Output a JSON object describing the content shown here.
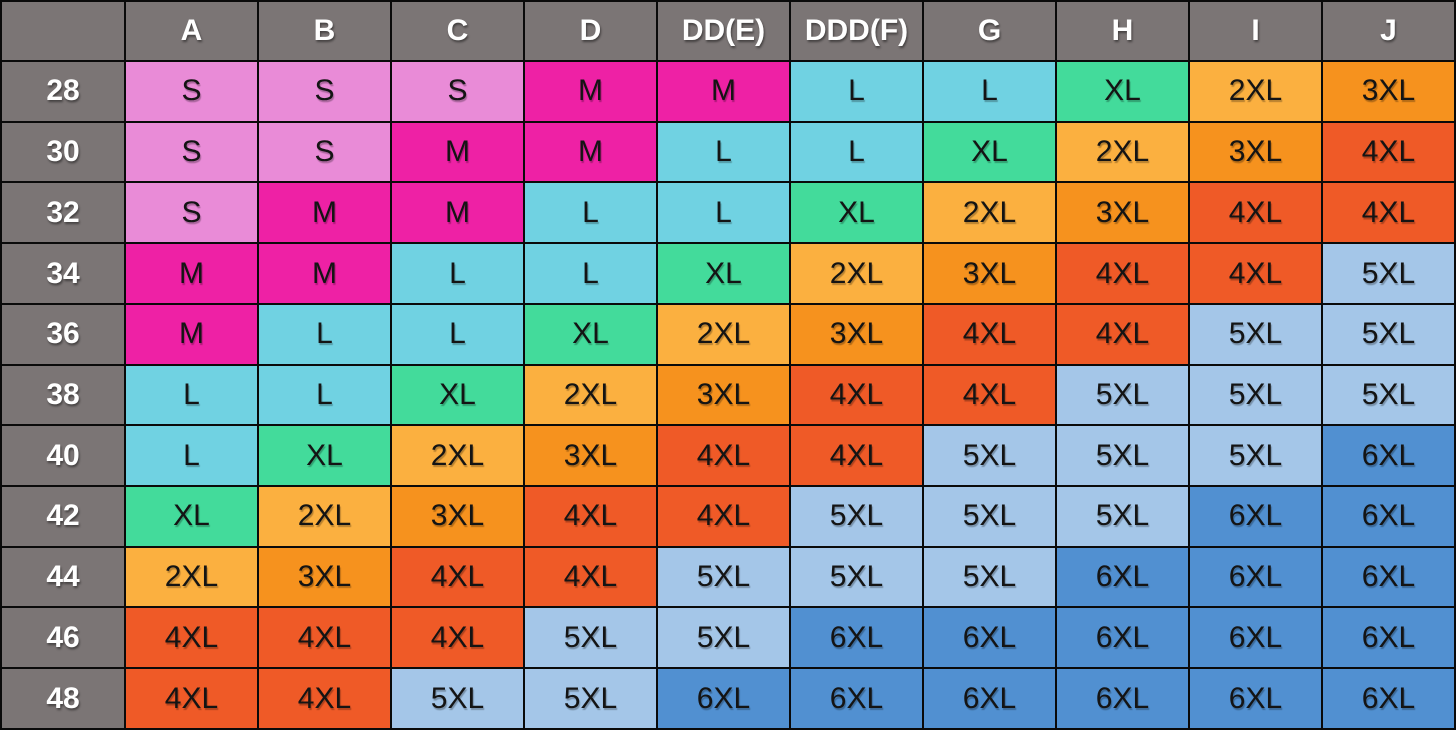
{
  "colors": {
    "header_bg": "#7B7575",
    "header_text": "#FFFFFF",
    "cell_text": "#141414",
    "grid_line": "#0A0A0A"
  },
  "chart_data": {
    "type": "table",
    "title": "",
    "corner_label": "",
    "columns": [
      "A",
      "B",
      "C",
      "D",
      "DD(E)",
      "DDD(F)",
      "G",
      "H",
      "I",
      "J"
    ],
    "row_labels": [
      "28",
      "30",
      "32",
      "34",
      "36",
      "38",
      "40",
      "42",
      "44",
      "46",
      "48"
    ],
    "matrix": [
      [
        "S",
        "S",
        "S",
        "M",
        "M",
        "L",
        "L",
        "XL",
        "2XL",
        "3XL"
      ],
      [
        "S",
        "S",
        "M",
        "M",
        "L",
        "L",
        "XL",
        "2XL",
        "3XL",
        "4XL"
      ],
      [
        "S",
        "M",
        "M",
        "L",
        "L",
        "XL",
        "2XL",
        "3XL",
        "4XL",
        "4XL"
      ],
      [
        "M",
        "M",
        "L",
        "L",
        "XL",
        "2XL",
        "3XL",
        "4XL",
        "4XL",
        "5XL"
      ],
      [
        "M",
        "L",
        "L",
        "XL",
        "2XL",
        "3XL",
        "4XL",
        "4XL",
        "5XL",
        "5XL"
      ],
      [
        "L",
        "L",
        "XL",
        "2XL",
        "3XL",
        "4XL",
        "4XL",
        "5XL",
        "5XL",
        "5XL"
      ],
      [
        "L",
        "XL",
        "2XL",
        "3XL",
        "4XL",
        "4XL",
        "5XL",
        "5XL",
        "5XL",
        "6XL"
      ],
      [
        "XL",
        "2XL",
        "3XL",
        "4XL",
        "4XL",
        "5XL",
        "5XL",
        "5XL",
        "6XL",
        "6XL"
      ],
      [
        "2XL",
        "3XL",
        "4XL",
        "4XL",
        "5XL",
        "5XL",
        "5XL",
        "6XL",
        "6XL",
        "6XL"
      ],
      [
        "4XL",
        "4XL",
        "4XL",
        "5XL",
        "5XL",
        "6XL",
        "6XL",
        "6XL",
        "6XL",
        "6XL"
      ],
      [
        "4XL",
        "4XL",
        "5XL",
        "5XL",
        "6XL",
        "6XL",
        "6XL",
        "6XL",
        "6XL",
        "6XL"
      ]
    ],
    "cell_colors": {
      "S": "#E98BD7",
      "M": "#EE21A5",
      "L": "#70D2E2",
      "XL": "#43DB9B",
      "2XL": "#FBB040",
      "3XL": "#F6921E",
      "4XL": "#EF5A27",
      "5XL": "#A4C6E8",
      "6XL": "#5190D1"
    }
  }
}
